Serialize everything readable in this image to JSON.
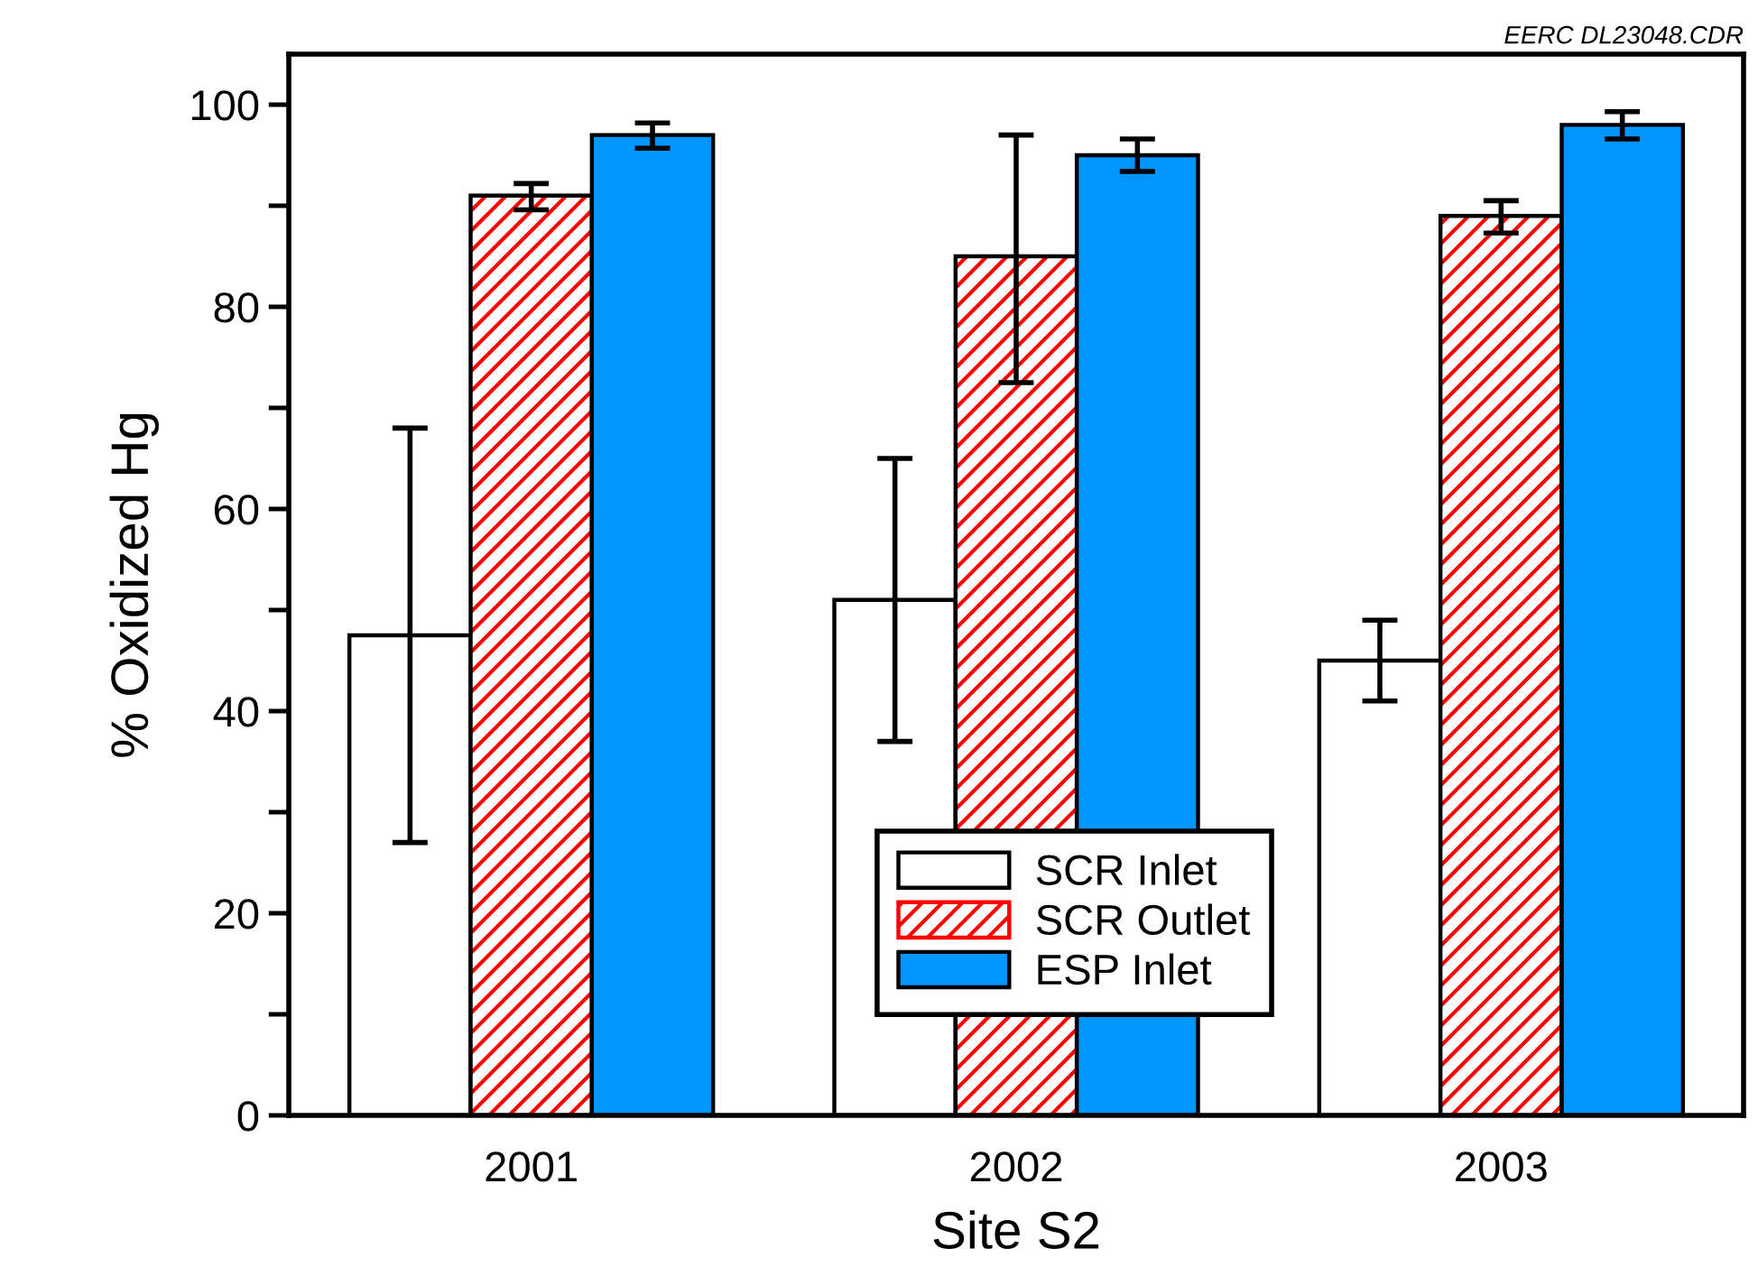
{
  "chart_data": {
    "type": "bar",
    "xlabel": "Site S2",
    "ylabel": "% Oxidized Hg",
    "categories": [
      "2001",
      "2002",
      "2003"
    ],
    "series": [
      {
        "name": "SCR Inlet",
        "color": "#ffffff",
        "values": [
          47.5,
          51,
          45
        ],
        "errors": [
          [
            27,
            68
          ],
          [
            37,
            65
          ],
          [
            41,
            49
          ]
        ]
      },
      {
        "name": "SCR Outlet",
        "color": "#ff0000",
        "values": [
          91,
          85,
          89
        ],
        "errors": [
          [
            89.6,
            92.2
          ],
          [
            72.5,
            97
          ],
          [
            87.3,
            90.5
          ]
        ]
      },
      {
        "name": "ESP Inlet",
        "color": "#0095ff",
        "values": [
          97,
          95,
          98
        ],
        "errors": [
          [
            95.7,
            98.2
          ],
          [
            93.4,
            96.6
          ],
          [
            96.6,
            99.3
          ]
        ]
      }
    ],
    "ylim": [
      0,
      105
    ],
    "yticks": [
      0,
      {
        "value": 10,
        "label": null
      },
      20,
      {
        "value": 30,
        "label": null
      },
      40,
      {
        "value": 50,
        "label": null
      },
      60,
      {
        "value": 70,
        "label": null
      },
      80,
      {
        "value": 90,
        "label": null
      },
      100
    ],
    "grid": false,
    "legend": "bottom",
    "annotations": [
      "EERC DL23048.CDR"
    ]
  }
}
